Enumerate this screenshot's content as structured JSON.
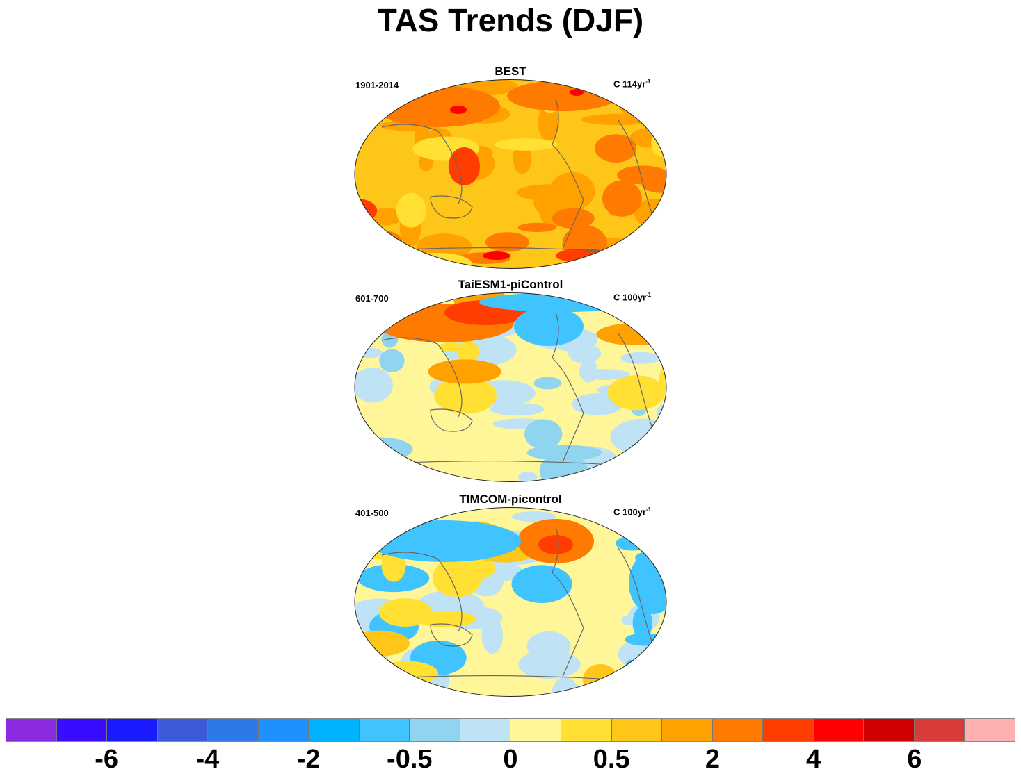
{
  "title": "TAS Trends (DJF)",
  "panels": [
    {
      "title": "BEST",
      "period": "1901-2014",
      "units_prefix": "C 114yr",
      "units_exp": "-1",
      "pattern": "warm"
    },
    {
      "title": "TaiESM1-piControl",
      "period": "601-700",
      "units_prefix": "C 100yr",
      "units_exp": "-1",
      "pattern": "mixed-arctic-warm"
    },
    {
      "title": "TIMCOM-picontrol",
      "period": "401-500",
      "units_prefix": "C 100yr",
      "units_exp": "-1",
      "pattern": "mixed-na-warm"
    }
  ],
  "colorbar": {
    "colors": [
      "#8a2be2",
      "#3a0cff",
      "#1a1aff",
      "#3b5bdb",
      "#2f78e8",
      "#1e90ff",
      "#00b2ff",
      "#40c4ff",
      "#90d4f0",
      "#bfe3f5",
      "#fff69a",
      "#ffe033",
      "#ffc61a",
      "#ffa200",
      "#ff7a00",
      "#ff3d00",
      "#ff0000",
      "#d10000",
      "#d93a3a",
      "#ffb0b0"
    ],
    "labels": [
      "-6",
      "-4",
      "-2",
      "-0.5",
      "0",
      "0.5",
      "2",
      "4",
      "6"
    ]
  }
}
